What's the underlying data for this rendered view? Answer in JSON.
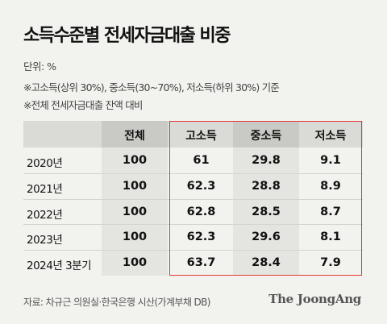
{
  "title": "소득수준별 전세자금대출 비중",
  "unit": "단위: %",
  "notes": [
    "※고소득(상위 30%), 중소득(30~70%), 저소득(하위 30%) 기준",
    "※전체 전세자금대출 잔액 대비"
  ],
  "source": "자료: 차규근 의원실·한국은행 시산(가계부채 DB)",
  "logo": "The JoongAng",
  "colors": {
    "highlight_border": "#e53a2f",
    "header_bg": "#dadad6",
    "column_band": "#e4e4e1"
  },
  "chart_data": {
    "type": "table",
    "title": "소득수준별 전세자금대출 비중",
    "columns": [
      "",
      "전체",
      "고소득",
      "중소득",
      "저소득"
    ],
    "rows": [
      {
        "label": "2020년",
        "values": [
          "100",
          "61",
          "29.8",
          "9.1"
        ]
      },
      {
        "label": "2021년",
        "values": [
          "100",
          "62.3",
          "28.8",
          "8.9"
        ]
      },
      {
        "label": "2022년",
        "values": [
          "100",
          "62.8",
          "28.5",
          "8.7"
        ]
      },
      {
        "label": "2023년",
        "values": [
          "100",
          "62.3",
          "29.6",
          "8.1"
        ]
      },
      {
        "label": "2024년 3분기",
        "values": [
          "100",
          "63.7",
          "28.4",
          "7.9"
        ]
      }
    ]
  }
}
